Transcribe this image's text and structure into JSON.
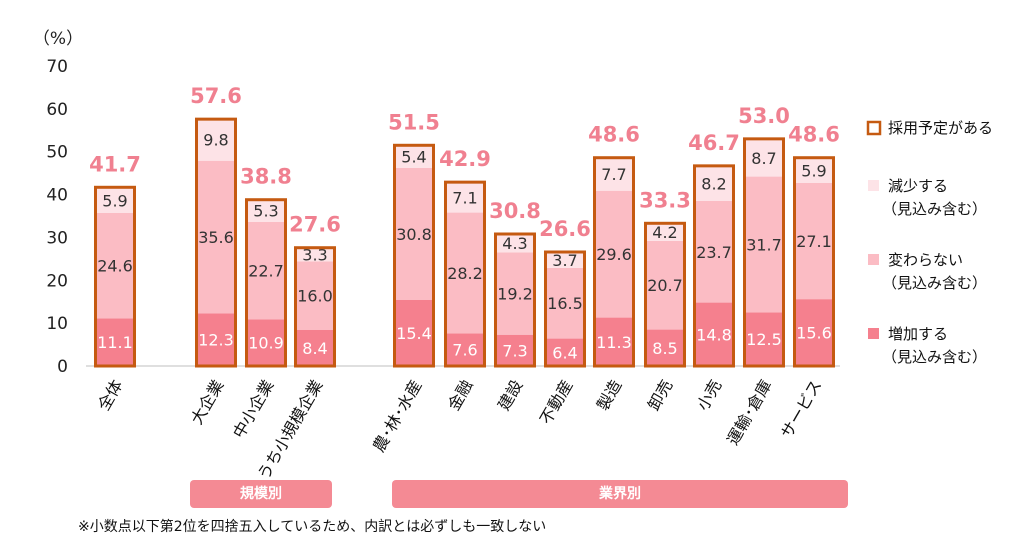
{
  "chart_data": {
    "type": "bar",
    "stacked": true,
    "y_unit_label": "（%）",
    "ylim": [
      0,
      70
    ],
    "yticks": [
      0,
      10,
      20,
      30,
      40,
      50,
      60,
      70
    ],
    "grid": false,
    "categories": [
      "全体",
      "大企業",
      "中小企業",
      "うち小規模企業",
      "農･林･水産",
      "金融",
      "建設",
      "不動産",
      "製造",
      "卸売",
      "小売",
      "運輸･倉庫",
      "サービス"
    ],
    "series": [
      {
        "name": "増加する\n（見込み含む）",
        "color": "#f5808e",
        "label_color": "#ffffff",
        "values": [
          11.1,
          12.3,
          10.9,
          8.4,
          15.4,
          7.6,
          7.3,
          6.4,
          11.3,
          8.5,
          14.8,
          12.5,
          15.6
        ],
        "labels": [
          "11.1",
          "12.3",
          "10.9",
          "8.4",
          "15.4",
          "7.6",
          "7.3",
          "6.4",
          "11.3",
          "8.5",
          "14.8",
          "12.5",
          "15.6"
        ]
      },
      {
        "name": "変わらない\n（見込み含む）",
        "color": "#fbbcc4",
        "label_color": "#333333",
        "values": [
          24.6,
          35.6,
          22.7,
          16.0,
          30.8,
          28.2,
          19.2,
          16.5,
          29.6,
          20.7,
          23.7,
          31.7,
          27.1
        ],
        "labels": [
          "24.6",
          "35.6",
          "22.7",
          "16.0",
          "30.8",
          "28.2",
          "19.2",
          "16.5",
          "29.6",
          "20.7",
          "23.7",
          "31.7",
          "27.1"
        ]
      },
      {
        "name": "減少する\n（見込み含む）",
        "color": "#fde3e7",
        "label_color": "#333333",
        "values": [
          5.9,
          9.8,
          5.3,
          3.3,
          5.4,
          7.1,
          4.3,
          3.7,
          7.7,
          4.2,
          8.2,
          8.7,
          5.9
        ],
        "labels": [
          "5.9",
          "9.8",
          "5.3",
          "3.3",
          "5.4",
          "7.1",
          "4.3",
          "3.7",
          "7.7",
          "4.2",
          "8.2",
          "8.7",
          "5.9"
        ]
      }
    ],
    "totals": {
      "name": "採用予定がある",
      "outline_color": "#c55a11",
      "values": [
        41.7,
        57.6,
        38.8,
        27.6,
        51.5,
        42.9,
        30.8,
        26.6,
        48.6,
        33.3,
        46.7,
        53.0,
        48.6
      ],
      "labels": [
        "41.7",
        "57.6",
        "38.8",
        "27.6",
        "51.5",
        "42.9",
        "30.8",
        "26.6",
        "48.6",
        "33.3",
        "46.7",
        "53.0",
        "48.6"
      ]
    },
    "groups": [
      {
        "label": "規模別",
        "categories": [
          "大企業",
          "中小企業",
          "うち小規模企業"
        ]
      },
      {
        "label": "業界別",
        "categories": [
          "農･林･水産",
          "金融",
          "建設",
          "不動産",
          "製造",
          "卸売",
          "小売",
          "運輸･倉庫",
          "サービス"
        ]
      }
    ],
    "legend_position": "right",
    "note": "※小数点以下第2位を四捨五入しているため、内訳とは必ずしも一致しない"
  }
}
